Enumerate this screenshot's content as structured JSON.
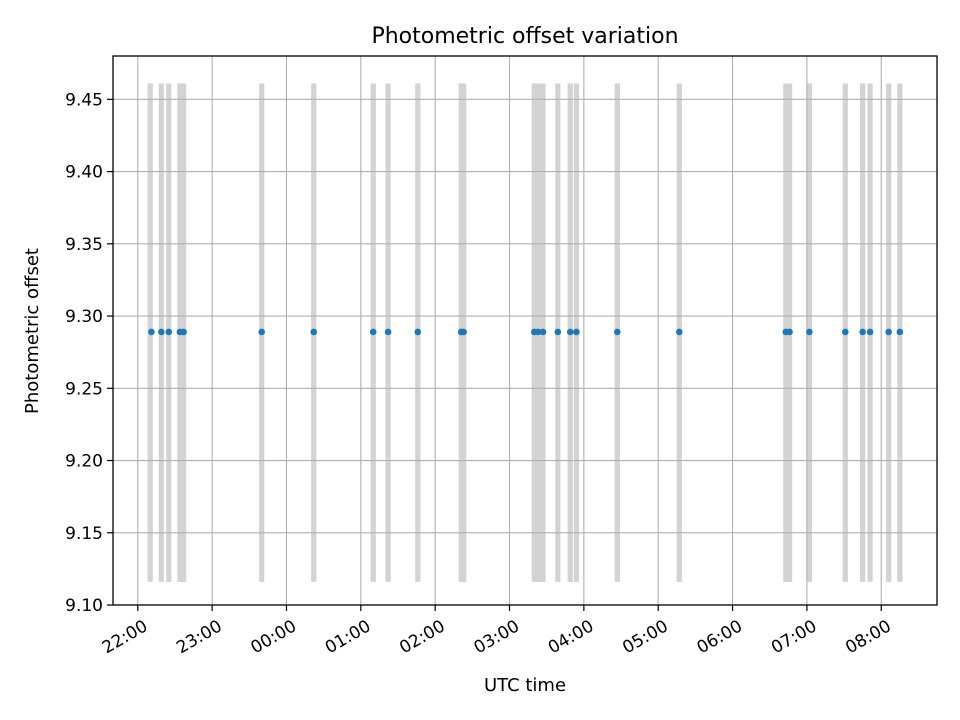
{
  "chart_data": {
    "type": "scatter",
    "title": "Photometric offset variation",
    "xlabel": "UTC time",
    "ylabel": "Photometric offset",
    "x_is_time": true,
    "xlim": [
      "21:40",
      "08:45"
    ],
    "ylim": [
      9.1,
      9.48
    ],
    "x_ticks": [
      "22:00",
      "23:00",
      "00:00",
      "01:00",
      "02:00",
      "03:00",
      "04:00",
      "05:00",
      "06:00",
      "07:00",
      "08:00"
    ],
    "y_ticks": [
      "9.10",
      "9.15",
      "9.20",
      "9.25",
      "9.30",
      "9.35",
      "9.40",
      "9.45"
    ],
    "grid": true,
    "point_color": "#1f77b4",
    "band_color": "#d3d3d3",
    "bands": {
      "y_range": [
        9.116,
        9.461
      ],
      "times": [
        "22:10",
        "22:19",
        "22:25",
        "22:34",
        "22:37",
        "23:40",
        "00:22",
        "01:10",
        "01:22",
        "01:46",
        "02:21",
        "02:23",
        "03:20",
        "03:23",
        "03:27",
        "03:39",
        "03:49",
        "03:54",
        "04:27",
        "05:17",
        "06:43",
        "06:46",
        "07:02",
        "07:31",
        "07:45",
        "07:51",
        "08:06",
        "08:15"
      ]
    },
    "points": {
      "times": [
        "22:11",
        "22:19",
        "22:25",
        "22:34",
        "22:37",
        "23:40",
        "00:22",
        "01:10",
        "01:22",
        "01:46",
        "02:21",
        "02:23",
        "03:20",
        "03:23",
        "03:27",
        "03:39",
        "03:49",
        "03:54",
        "04:27",
        "05:17",
        "06:43",
        "06:46",
        "07:02",
        "07:31",
        "07:45",
        "07:51",
        "08:06",
        "08:15"
      ],
      "value": 9.289
    }
  }
}
